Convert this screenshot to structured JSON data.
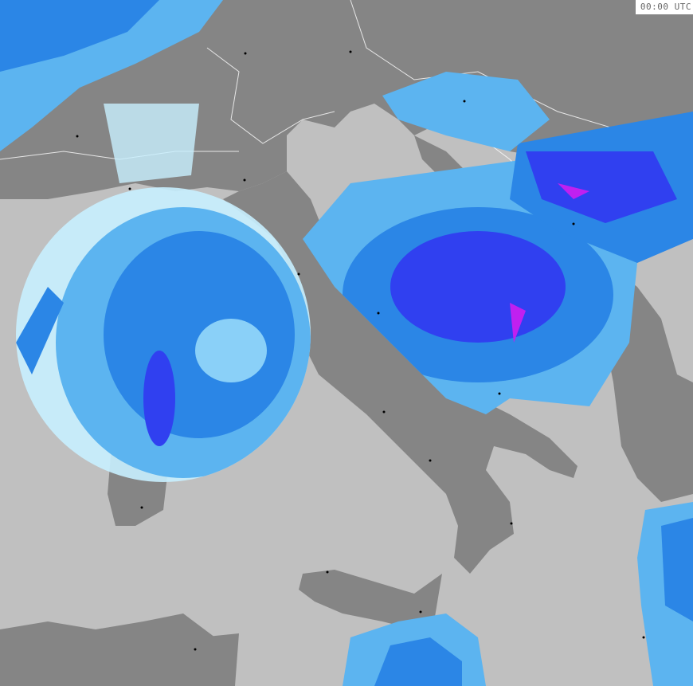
{
  "map": {
    "timestamp": "00:00 UTC",
    "colors": {
      "sea": "#c0c0c0",
      "land": "#858585",
      "borders": "#ffffff",
      "coast_overlay": "#8a7a7a",
      "precip_very_light": "#c8f0ff",
      "precip_light": "#5cb4f0",
      "precip_moderate": "#2b86e6",
      "precip_heavy": "#3040f0",
      "precip_very_heavy": "#c020f0"
    }
  }
}
